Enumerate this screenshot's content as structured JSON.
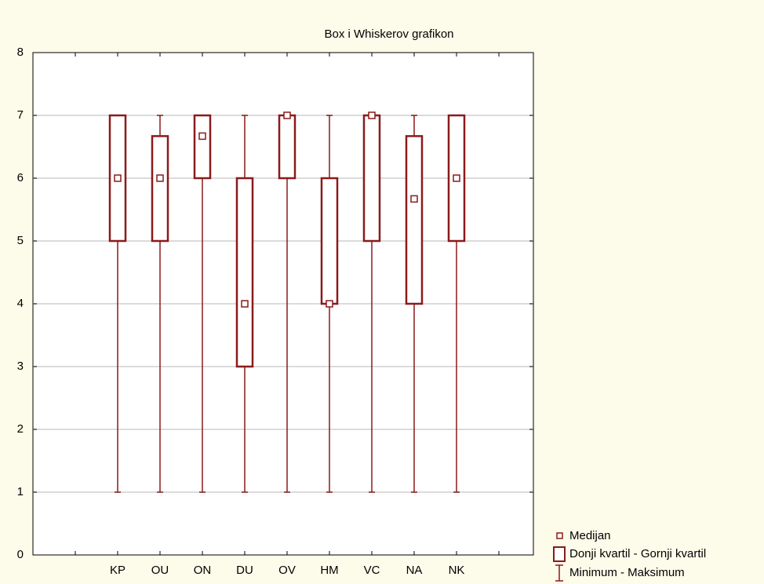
{
  "chart_data": {
    "type": "box",
    "title": "Box i Whiskerov grafikon",
    "categories": [
      "KP",
      "OU",
      "ON",
      "DU",
      "OV",
      "HM",
      "VC",
      "NA",
      "NK"
    ],
    "min": [
      1,
      1,
      1,
      1,
      1,
      1,
      1,
      1,
      1
    ],
    "q1": [
      5,
      5,
      6,
      3,
      6,
      4,
      5,
      4,
      5
    ],
    "median": [
      6,
      6,
      6.67,
      4,
      7,
      4,
      7,
      5.67,
      6
    ],
    "q3": [
      7,
      6.67,
      7,
      6,
      7,
      6,
      7,
      6.67,
      7
    ],
    "max": [
      7,
      7,
      7,
      7,
      7,
      7,
      7,
      7,
      7
    ],
    "legend": {
      "median": "Medijan",
      "box": "Donji kvartil - Gornji kvartil",
      "whisker": "Minimum - Maksimum"
    },
    "color": "#8b1a1a",
    "ylim": [
      0,
      8
    ],
    "yticks": [
      0,
      1,
      2,
      3,
      4,
      5,
      6,
      7,
      8
    ],
    "grid": true
  }
}
